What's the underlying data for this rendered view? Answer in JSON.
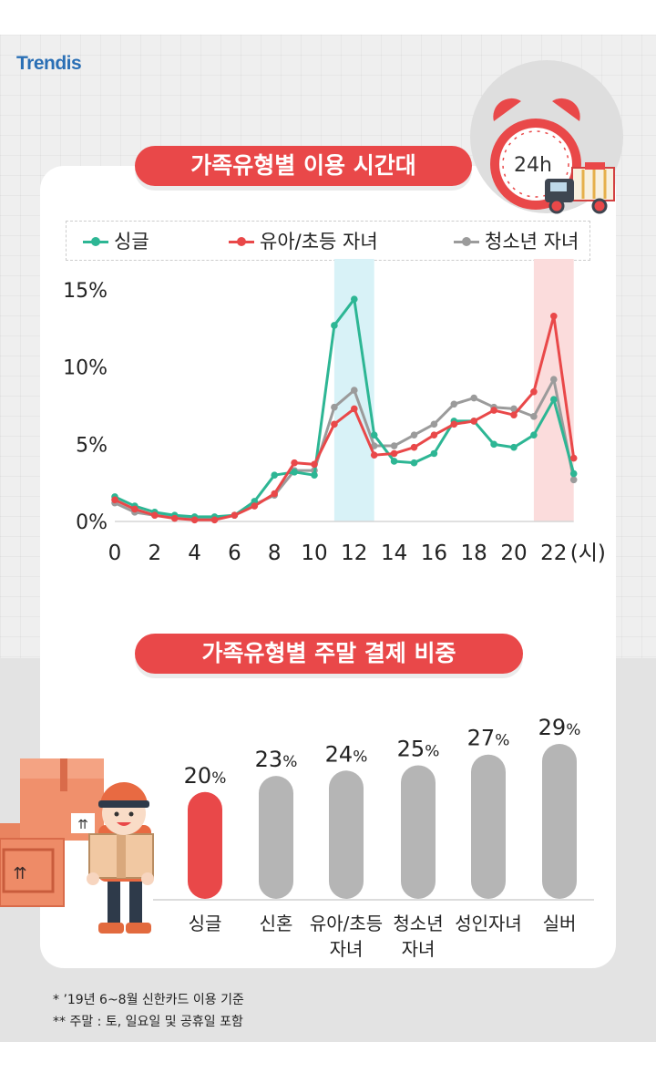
{
  "brand": {
    "logo_text": "Trendis"
  },
  "alarm_clock": {
    "label": "24h"
  },
  "chart1": {
    "title": "가족유형별 이용 시간대",
    "legend": [
      "싱글",
      "유아/초등 자녀",
      "청소년 자녀"
    ],
    "unit_label": "(시)"
  },
  "chart2": {
    "title": "가족유형별 주말 결제 비중",
    "categories": [
      [
        "싱글"
      ],
      [
        "신혼"
      ],
      [
        "유아/초등",
        "자녀"
      ],
      [
        "청소년",
        "자녀"
      ],
      [
        "성인자녀"
      ],
      [
        "실버"
      ]
    ]
  },
  "colors": {
    "single": "#2db694",
    "child": "#e94849",
    "teen": "#9b9b9b",
    "highlight_noon": "#d8f2f7",
    "highlight_night": "#fbdcdc",
    "bar_gray": "#b5b5b5"
  },
  "chart_data": [
    {
      "type": "line",
      "title": "가족유형별 이용 시간대",
      "xlabel": "(시)",
      "ylabel": "",
      "x": [
        0,
        1,
        2,
        3,
        4,
        5,
        6,
        7,
        8,
        9,
        10,
        11,
        12,
        13,
        14,
        15,
        16,
        17,
        18,
        19,
        20,
        21,
        22,
        23
      ],
      "xticks": [
        0,
        2,
        4,
        6,
        8,
        10,
        12,
        14,
        16,
        18,
        20,
        22
      ],
      "yticks": [
        "0%",
        "5%",
        "10%",
        "15%"
      ],
      "ylim": [
        0,
        15
      ],
      "highlight_ranges": [
        [
          11,
          13
        ],
        [
          21,
          23
        ]
      ],
      "legend_position": "top",
      "series": [
        {
          "name": "싱글",
          "values": [
            1.6,
            1.0,
            0.6,
            0.4,
            0.3,
            0.3,
            0.4,
            1.3,
            3.0,
            3.2,
            3.0,
            12.7,
            14.4,
            5.6,
            3.9,
            3.8,
            4.4,
            6.5,
            6.5,
            5.0,
            4.8,
            5.6,
            7.9,
            3.1
          ]
        },
        {
          "name": "유아/초등 자녀",
          "values": [
            1.4,
            0.8,
            0.4,
            0.2,
            0.1,
            0.1,
            0.4,
            1.0,
            1.8,
            3.8,
            3.7,
            6.3,
            7.3,
            4.3,
            4.4,
            4.8,
            5.6,
            6.3,
            6.5,
            7.2,
            6.9,
            8.4,
            13.3,
            4.1
          ]
        },
        {
          "name": "청소년 자녀",
          "values": [
            1.2,
            0.6,
            0.4,
            0.3,
            0.2,
            0.2,
            0.4,
            1.1,
            1.7,
            3.3,
            3.3,
            7.4,
            8.5,
            4.9,
            4.9,
            5.6,
            6.3,
            7.6,
            8.0,
            7.4,
            7.3,
            6.8,
            9.2,
            2.7
          ]
        }
      ]
    },
    {
      "type": "bar",
      "title": "가족유형별 주말 결제 비중",
      "categories": [
        "싱글",
        "신혼",
        "유아/초등 자녀",
        "청소년 자녀",
        "성인자녀",
        "실버"
      ],
      "values": [
        20,
        23,
        24,
        25,
        27,
        29
      ],
      "value_suffix": "%",
      "highlight_index": 0
    }
  ],
  "footnotes": [
    "* ’19년 6~8월 신한카드 이용 기준",
    "** 주말 : 토, 일요일 및 공휴일 포함"
  ]
}
